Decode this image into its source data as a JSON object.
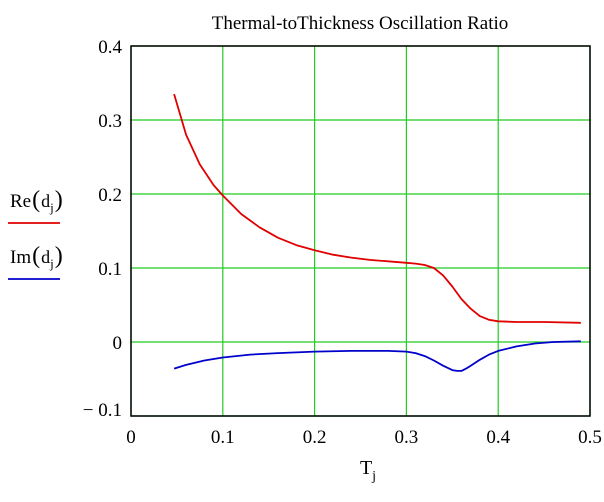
{
  "chart_data": {
    "type": "line",
    "title": "Thermal-toThickness Oscillation Ratio",
    "xlabel": {
      "base": "T",
      "sub": "j"
    },
    "xlim": [
      0,
      0.5
    ],
    "ylim": [
      -0.1,
      0.4
    ],
    "x_ticks": [
      {
        "v": 0,
        "label": "0"
      },
      {
        "v": 0.1,
        "label": "0.1"
      },
      {
        "v": 0.2,
        "label": "0.2"
      },
      {
        "v": 0.3,
        "label": "0.3"
      },
      {
        "v": 0.4,
        "label": "0.4"
      },
      {
        "v": 0.5,
        "label": "0.5"
      }
    ],
    "y_ticks": [
      {
        "v": -0.1,
        "label": "− 0.1"
      },
      {
        "v": 0,
        "label": "0"
      },
      {
        "v": 0.1,
        "label": "0.1"
      },
      {
        "v": 0.2,
        "label": "0.2"
      },
      {
        "v": 0.3,
        "label": "0.3"
      },
      {
        "v": 0.4,
        "label": "0.4"
      }
    ],
    "grid": true,
    "grid_color": "#22cc22",
    "legend_placement": "left",
    "series": [
      {
        "name": {
          "base": "Re",
          "sub": "j",
          "arg": "d"
        },
        "color": "#e00000",
        "x": [
          0.047,
          0.06,
          0.075,
          0.09,
          0.1,
          0.12,
          0.14,
          0.16,
          0.18,
          0.2,
          0.22,
          0.24,
          0.26,
          0.28,
          0.3,
          0.31,
          0.32,
          0.33,
          0.34,
          0.35,
          0.36,
          0.37,
          0.38,
          0.39,
          0.4,
          0.42,
          0.45,
          0.49
        ],
        "y": [
          0.335,
          0.28,
          0.24,
          0.212,
          0.198,
          0.173,
          0.155,
          0.141,
          0.131,
          0.124,
          0.118,
          0.114,
          0.111,
          0.109,
          0.107,
          0.106,
          0.104,
          0.1,
          0.09,
          0.075,
          0.058,
          0.045,
          0.035,
          0.03,
          0.028,
          0.027,
          0.027,
          0.026
        ]
      },
      {
        "name": {
          "base": "Im",
          "sub": "j",
          "arg": "d"
        },
        "color": "#0000cc",
        "x": [
          0.047,
          0.06,
          0.08,
          0.1,
          0.13,
          0.16,
          0.2,
          0.24,
          0.28,
          0.3,
          0.31,
          0.32,
          0.33,
          0.34,
          0.35,
          0.355,
          0.36,
          0.365,
          0.37,
          0.38,
          0.39,
          0.4,
          0.42,
          0.44,
          0.46,
          0.49
        ],
        "y": [
          -0.036,
          -0.031,
          -0.025,
          -0.021,
          -0.017,
          -0.015,
          -0.013,
          -0.012,
          -0.012,
          -0.013,
          -0.015,
          -0.019,
          -0.025,
          -0.032,
          -0.038,
          -0.039,
          -0.039,
          -0.036,
          -0.032,
          -0.024,
          -0.017,
          -0.012,
          -0.006,
          -0.002,
          0.0,
          0.001
        ]
      }
    ]
  }
}
